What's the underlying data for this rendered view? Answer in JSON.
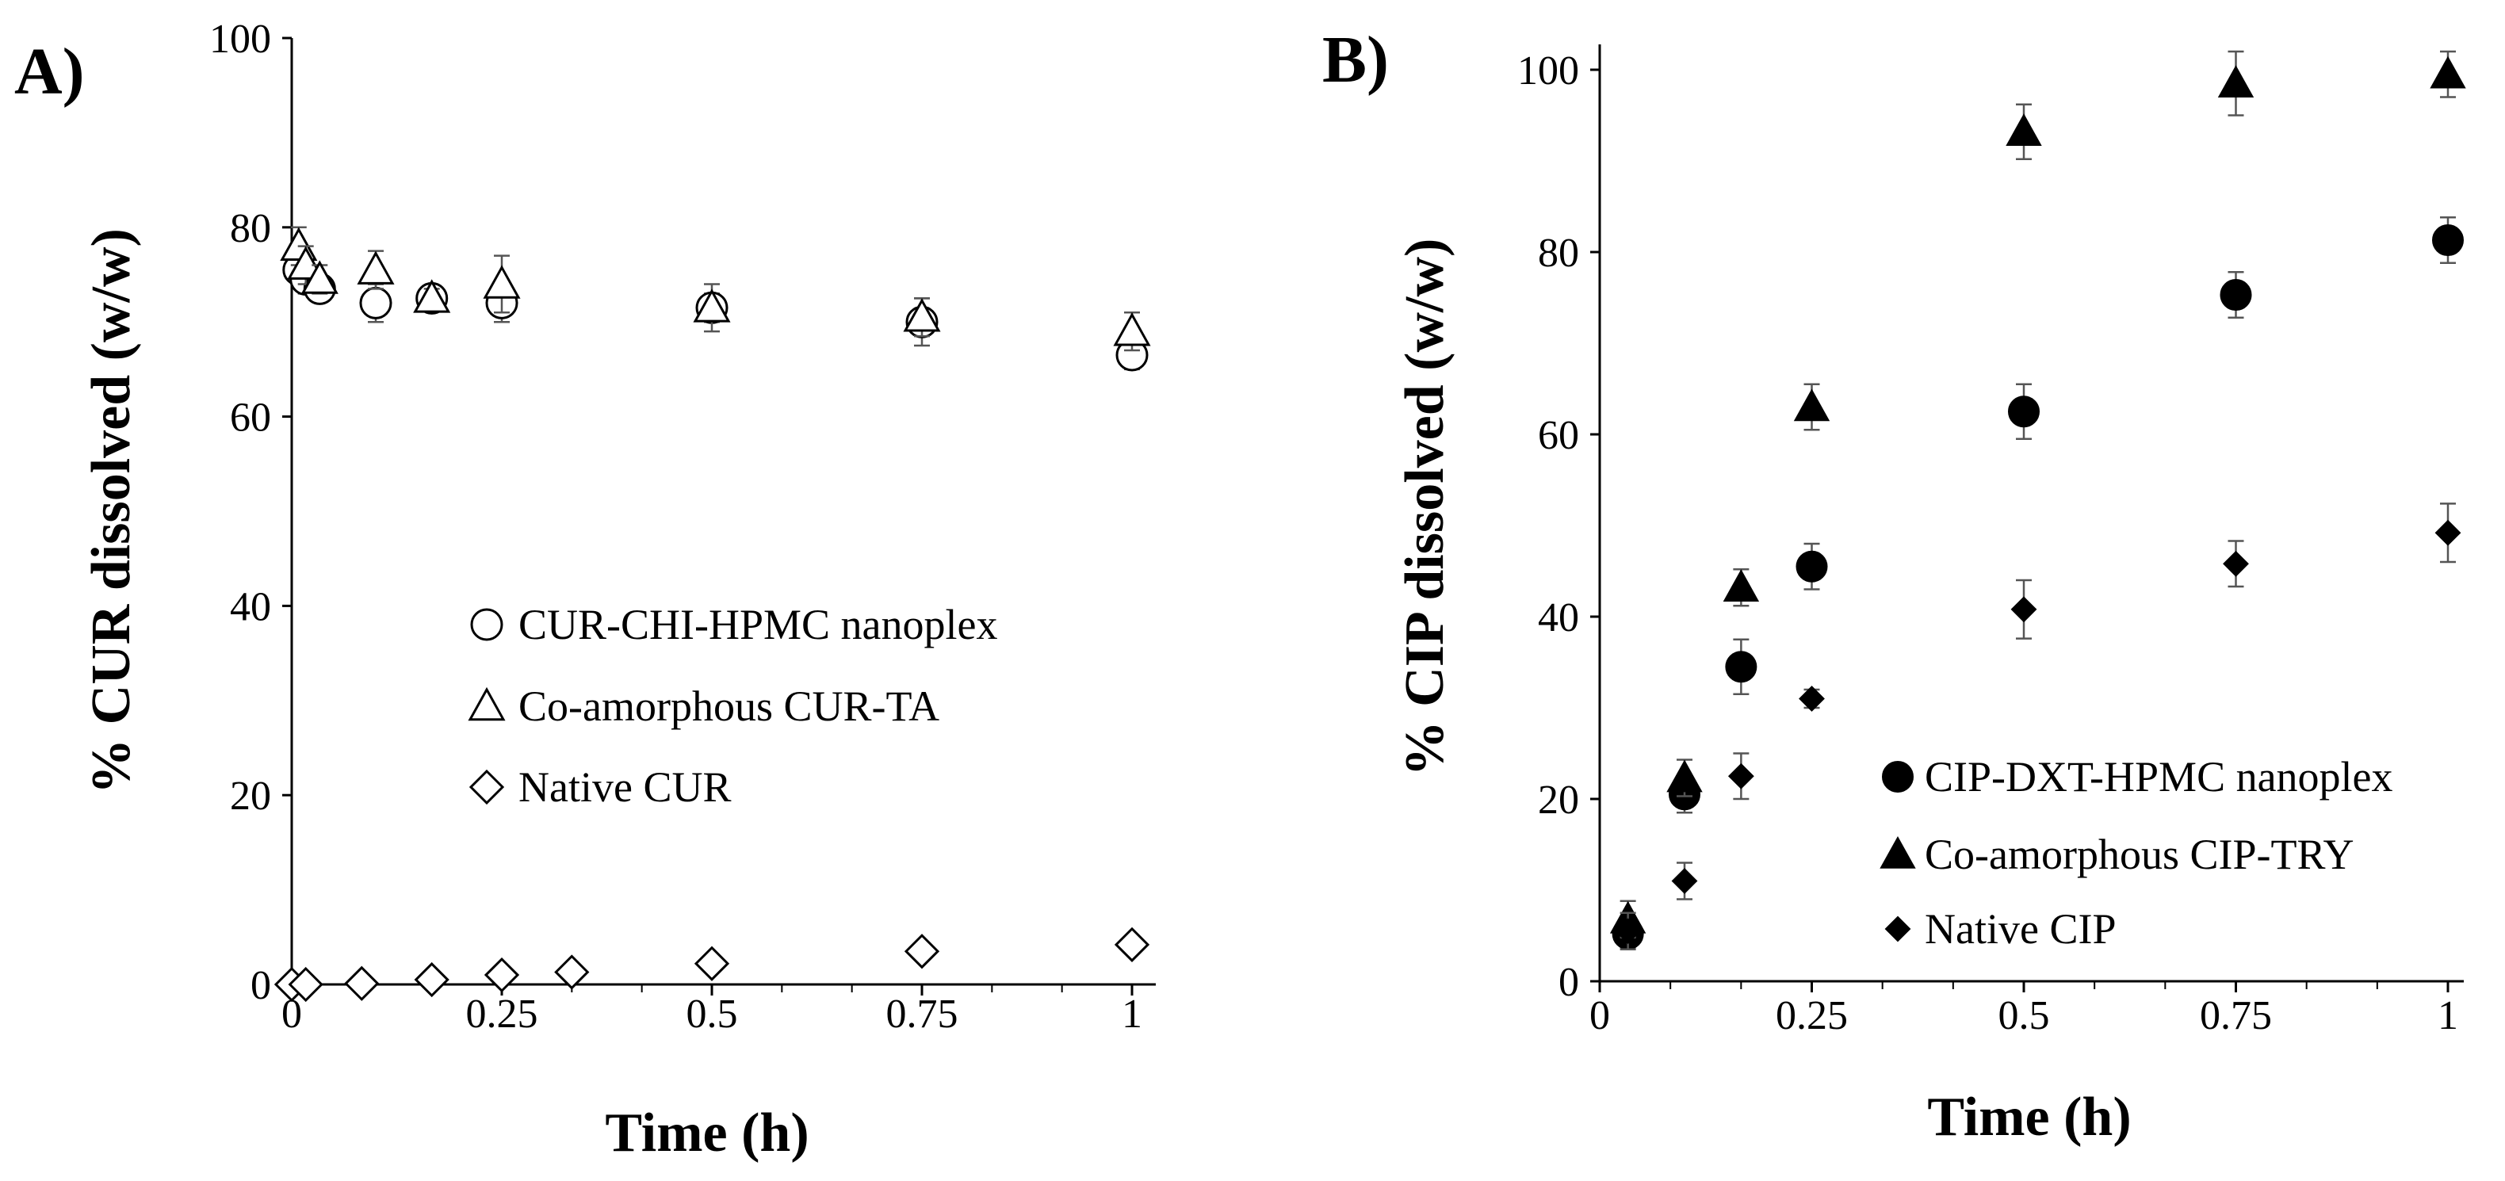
{
  "chart_data": [
    {
      "panel": "A)",
      "type": "scatter",
      "xlabel": "Time (h)",
      "ylabel": "% CUR dissolved (w/w)",
      "xlim": [
        0,
        1
      ],
      "ylim": [
        0,
        100
      ],
      "xticks": [
        "0",
        "0.25",
        "0.5",
        "0.75",
        "1"
      ],
      "yticks": [
        "0",
        "20",
        "40",
        "60",
        "80",
        "100"
      ],
      "legend_position": "center-right",
      "series": [
        {
          "name": "CUR-CHI-HPMC nanoplex",
          "marker": "circle-open",
          "x": [
            0.0083,
            0.0167,
            0.0333,
            0.1,
            0.1667,
            0.25,
            0.5,
            0.75,
            1.0
          ],
          "y": [
            75.5,
            74.5,
            73.5,
            72,
            72.5,
            72,
            71.5,
            70,
            66.5
          ],
          "err": [
            1.5,
            1.5,
            1.0,
            2.0,
            1.0,
            2.0,
            1.5,
            2.5,
            1.5
          ]
        },
        {
          "name": "Co-amorphous CUR-TA",
          "marker": "triangle-open",
          "x": [
            0.0083,
            0.0167,
            0.0333,
            0.1,
            0.1667,
            0.25,
            0.5,
            0.75,
            1.0
          ],
          "y": [
            78,
            76,
            74.5,
            75.5,
            72.5,
            74,
            71.5,
            70.5,
            69
          ],
          "err": [
            2.0,
            2.0,
            1.5,
            2.0,
            1.0,
            3.0,
            2.5,
            2.0,
            2.0
          ]
        },
        {
          "name": "Native CUR",
          "marker": "diamond-open",
          "x": [
            0.0,
            0.0167,
            0.0833,
            0.1667,
            0.25,
            0.3333,
            0.5,
            0.75,
            1.0
          ],
          "y": [
            0,
            0,
            0.1,
            0.5,
            1.0,
            1.3,
            2.2,
            3.5,
            4.2
          ],
          "err": [
            0.2,
            0.2,
            0.3,
            0.4,
            0.5,
            0.5,
            0.6,
            0.6,
            0.8
          ]
        }
      ]
    },
    {
      "panel": "B)",
      "type": "scatter",
      "xlabel": "Time (h)",
      "ylabel": "% CIP dissolved (w/w)",
      "xlim": [
        0,
        1
      ],
      "ylim": [
        0,
        100
      ],
      "xticks": [
        "0",
        "0.25",
        "0.5",
        "0.75",
        "1"
      ],
      "yticks": [
        "0",
        "20",
        "40",
        "60",
        "80",
        "100"
      ],
      "legend_position": "bottom-right",
      "series": [
        {
          "name": "CIP-DXT-HPMC nanoplex",
          "marker": "circle-filled",
          "x": [
            0.0333,
            0.1,
            0.1667,
            0.25,
            0.5,
            0.75,
            1.0
          ],
          "y": [
            5.2,
            20.5,
            34.5,
            45.5,
            62.5,
            75.3,
            81.3
          ],
          "err": [
            1.5,
            2.0,
            3.0,
            2.5,
            3.0,
            2.5,
            2.5
          ]
        },
        {
          "name": "Co-amorphous CIP-TRY",
          "marker": "triangle-filled",
          "x": [
            0.0333,
            0.1,
            0.1667,
            0.25,
            0.5,
            0.75,
            1.0
          ],
          "y": [
            6.8,
            22.3,
            43.2,
            63,
            93.2,
            98.5,
            99.5
          ],
          "err": [
            2.0,
            2.0,
            2.0,
            2.5,
            3.0,
            3.5,
            2.5
          ]
        },
        {
          "name": "Native CIP",
          "marker": "diamond-filled",
          "x": [
            0.0333,
            0.1,
            0.1667,
            0.25,
            0.5,
            0.75,
            1.0
          ],
          "y": [
            5.5,
            11,
            22.5,
            31,
            40.8,
            45.8,
            49.2
          ],
          "err": [
            2.0,
            2.0,
            2.5,
            1.0,
            3.2,
            2.5,
            3.2
          ]
        }
      ]
    }
  ]
}
